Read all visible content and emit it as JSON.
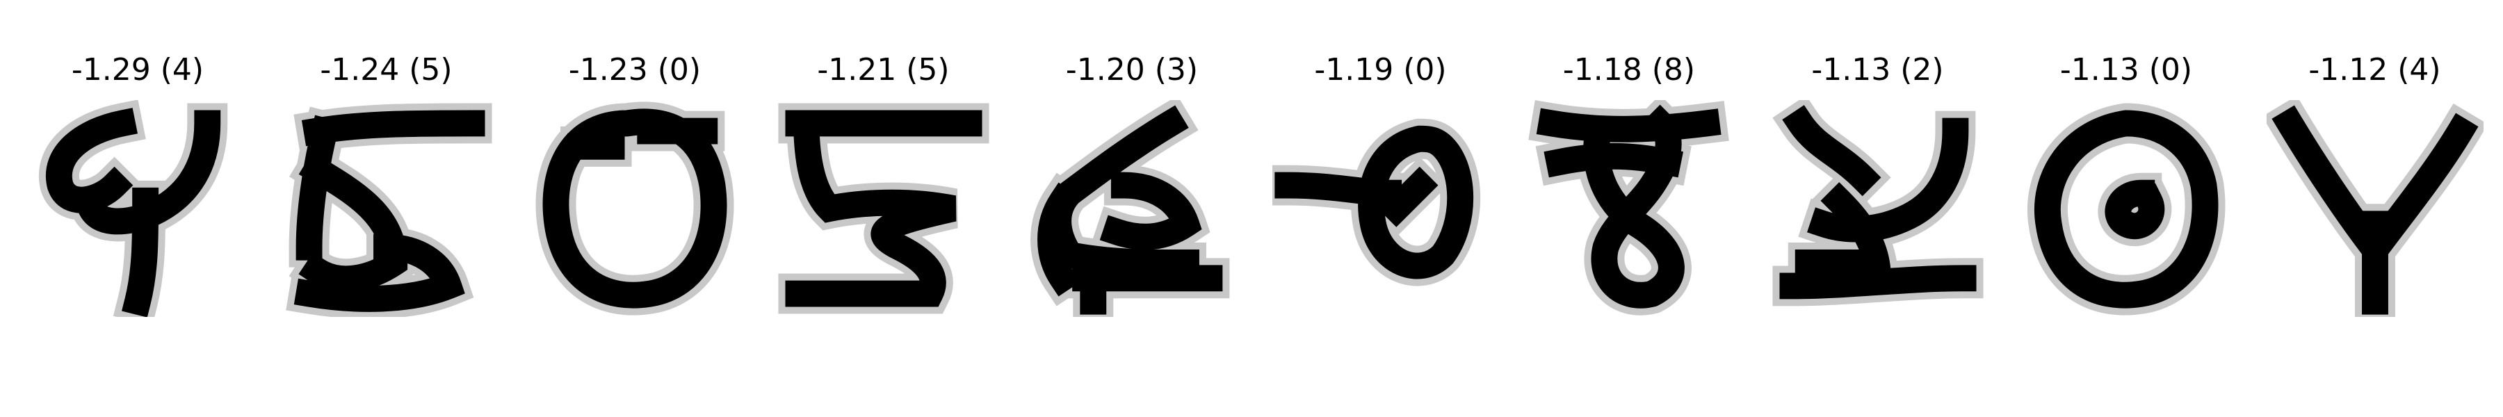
{
  "figure": {
    "background": "#ffffff",
    "ink_color": "#000000",
    "panels": [
      {
        "score": "-1.29",
        "label": "4",
        "caption": "-1.29 (4)",
        "glyph": "four-open"
      },
      {
        "score": "-1.24",
        "label": "5",
        "caption": "-1.24 (5)",
        "glyph": "five-boxy"
      },
      {
        "score": "-1.23",
        "label": "0",
        "caption": "-1.23 (0)",
        "glyph": "zero-wide"
      },
      {
        "score": "-1.21",
        "label": "5",
        "caption": "-1.21 (5)",
        "glyph": "five-zigzag"
      },
      {
        "score": "-1.20",
        "label": "3",
        "caption": "-1.20 (3)",
        "glyph": "three-rotated"
      },
      {
        "score": "-1.19",
        "label": "0",
        "caption": "-1.19 (0)",
        "glyph": "zero-tailed"
      },
      {
        "score": "-1.18",
        "label": "8",
        "caption": "-1.18 (8)",
        "glyph": "eight-wide-top"
      },
      {
        "score": "-1.13",
        "label": "2",
        "caption": "-1.13 (2)",
        "glyph": "two-forked"
      },
      {
        "score": "-1.13",
        "label": "0",
        "caption": "-1.13 (0)",
        "glyph": "zero-curled"
      },
      {
        "score": "-1.12",
        "label": "4",
        "caption": "-1.12 (4)",
        "glyph": "four-v"
      }
    ]
  }
}
